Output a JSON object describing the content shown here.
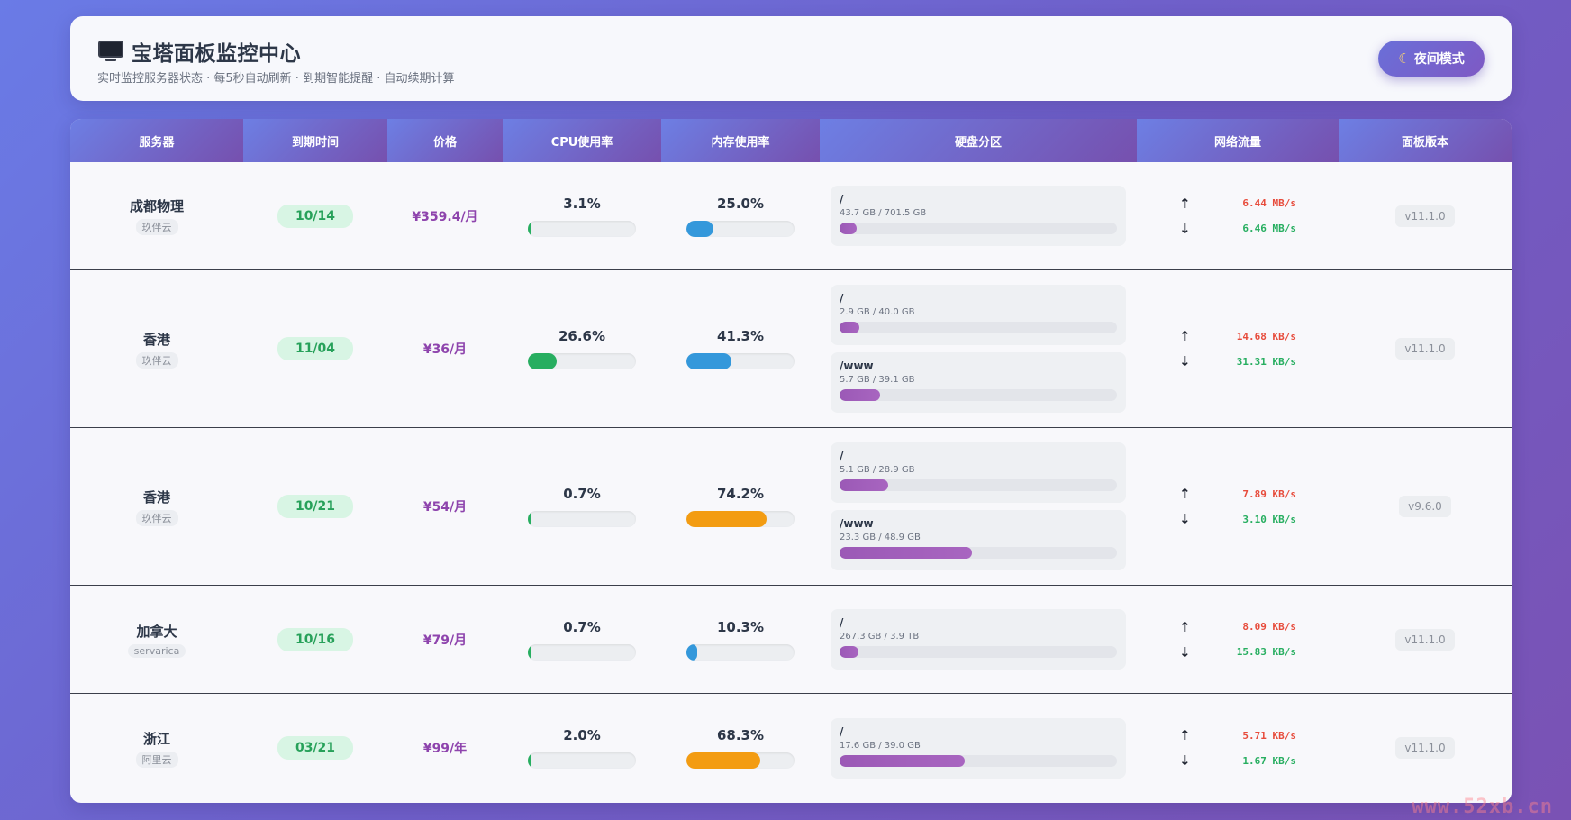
{
  "header": {
    "title": "宝塔面板监控中心",
    "subtitle": "实时监控服务器状态 · 每5秒自动刷新 · 到期智能提醒 · 自动续期计算",
    "night_mode_label": "夜间模式"
  },
  "columns": [
    "服务器",
    "到期时间",
    "价格",
    "CPU使用率",
    "内存使用率",
    "硬盘分区",
    "网络流量",
    "面板版本"
  ],
  "colors": {
    "cpu_green": "#27ae60",
    "mem_blue": "#3498db",
    "mem_orange": "#f39c12",
    "disk_purple": "#9b59b6",
    "up_red": "#e74c3c",
    "down_green": "#27ae60"
  },
  "servers": [
    {
      "name": "成都物理",
      "provider": "玖伴云",
      "expire": "10/14",
      "price": "¥359.4/月",
      "cpu": "3.1%",
      "cpu_value": 3.1,
      "mem": "25.0%",
      "mem_value": 25.0,
      "mem_color": "#3498db",
      "disks": [
        {
          "mount": "/",
          "usage": "43.7 GB / 701.5 GB",
          "value": 6.2
        }
      ],
      "net_up": "6.44 MB/s",
      "net_down": "6.46 MB/s",
      "version": "v11.1.0"
    },
    {
      "name": "香港",
      "provider": "玖伴云",
      "expire": "11/04",
      "price": "¥36/月",
      "cpu": "26.6%",
      "cpu_value": 26.6,
      "mem": "41.3%",
      "mem_value": 41.3,
      "mem_color": "#3498db",
      "disks": [
        {
          "mount": "/",
          "usage": "2.9 GB / 40.0 GB",
          "value": 7.3
        },
        {
          "mount": "/www",
          "usage": "5.7 GB / 39.1 GB",
          "value": 14.6
        }
      ],
      "net_up": "14.68 KB/s",
      "net_down": "31.31 KB/s",
      "version": "v11.1.0"
    },
    {
      "name": "香港",
      "provider": "玖伴云",
      "expire": "10/21",
      "price": "¥54/月",
      "cpu": "0.7%",
      "cpu_value": 0.7,
      "mem": "74.2%",
      "mem_value": 74.2,
      "mem_color": "#f39c12",
      "disks": [
        {
          "mount": "/",
          "usage": "5.1 GB / 28.9 GB",
          "value": 17.6
        },
        {
          "mount": "/www",
          "usage": "23.3 GB / 48.9 GB",
          "value": 47.6
        }
      ],
      "net_up": "7.89 KB/s",
      "net_down": "3.10 KB/s",
      "version": "v9.6.0"
    },
    {
      "name": "加拿大",
      "provider": "servarica",
      "expire": "10/16",
      "price": "¥79/月",
      "cpu": "0.7%",
      "cpu_value": 0.7,
      "mem": "10.3%",
      "mem_value": 10.3,
      "mem_color": "#3498db",
      "disks": [
        {
          "mount": "/",
          "usage": "267.3 GB / 3.9 TB",
          "value": 6.7
        }
      ],
      "net_up": "8.09 KB/s",
      "net_down": "15.83 KB/s",
      "version": "v11.1.0"
    },
    {
      "name": "浙江",
      "provider": "阿里云",
      "expire": "03/21",
      "price": "¥99/年",
      "cpu": "2.0%",
      "cpu_value": 2.0,
      "mem": "68.3%",
      "mem_value": 68.3,
      "mem_color": "#f39c12",
      "disks": [
        {
          "mount": "/",
          "usage": "17.6 GB / 39.0 GB",
          "value": 45.1
        }
      ],
      "net_up": "5.71 KB/s",
      "net_down": "1.67 KB/s",
      "version": "v11.1.0"
    }
  ],
  "arrows": {
    "up": "↑",
    "down": "↓"
  },
  "watermark": "www.52xb.cn"
}
